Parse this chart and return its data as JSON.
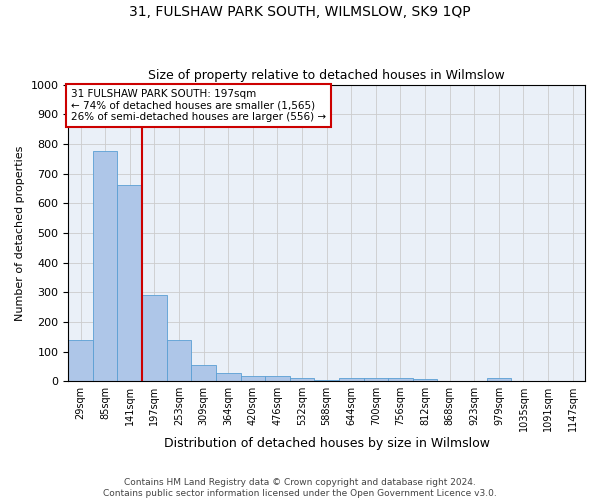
{
  "title": "31, FULSHAW PARK SOUTH, WILMSLOW, SK9 1QP",
  "subtitle": "Size of property relative to detached houses in Wilmslow",
  "xlabel": "Distribution of detached houses by size in Wilmslow",
  "ylabel": "Number of detached properties",
  "footnote1": "Contains HM Land Registry data © Crown copyright and database right 2024.",
  "footnote2": "Contains public sector information licensed under the Open Government Licence v3.0.",
  "annotation_line1": "31 FULSHAW PARK SOUTH: 197sqm",
  "annotation_line2": "← 74% of detached houses are smaller (1,565)",
  "annotation_line3": "26% of semi-detached houses are larger (556) →",
  "bar_color": "#aec6e8",
  "bar_edge_color": "#5a9fd4",
  "vline_color": "#cc0000",
  "annotation_box_color": "#cc0000",
  "categories": [
    "29sqm",
    "85sqm",
    "141sqm",
    "197sqm",
    "253sqm",
    "309sqm",
    "364sqm",
    "420sqm",
    "476sqm",
    "532sqm",
    "588sqm",
    "644sqm",
    "700sqm",
    "756sqm",
    "812sqm",
    "868sqm",
    "923sqm",
    "979sqm",
    "1035sqm",
    "1091sqm",
    "1147sqm"
  ],
  "values": [
    140,
    775,
    660,
    290,
    138,
    53,
    28,
    18,
    18,
    12,
    5,
    10,
    10,
    10,
    8,
    0,
    0,
    12,
    0,
    0,
    0
  ],
  "subject_category": "197sqm",
  "ylim": [
    0,
    1000
  ],
  "yticks": [
    0,
    100,
    200,
    300,
    400,
    500,
    600,
    700,
    800,
    900,
    1000
  ],
  "grid_color": "#cccccc",
  "bg_color": "#eaf0f8",
  "title_fontsize": 10,
  "subtitle_fontsize": 9,
  "ylabel_fontsize": 8,
  "xlabel_fontsize": 9,
  "tick_fontsize": 7,
  "annotation_fontsize": 7.5,
  "footnote_fontsize": 6.5
}
